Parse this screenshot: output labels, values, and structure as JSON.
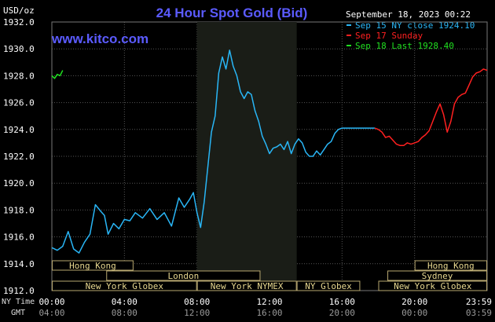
{
  "chart_data": {
    "type": "line",
    "title": "24 Hour Spot Gold (Bid)",
    "website": "www.kitco.com",
    "ylabel": "USD/oz",
    "datestamp": "September 18, 2023 00:22",
    "ylim": [
      1912,
      1932
    ],
    "y_ticks": [
      "1932.0",
      "1930.0",
      "1928.0",
      "1926.0",
      "1924.0",
      "1922.0",
      "1920.0",
      "1918.0",
      "1916.0",
      "1914.0",
      "1912.0"
    ],
    "x_row_label": "NY Time",
    "x_ticks": [
      "00:00",
      "04:00",
      "08:00",
      "12:00",
      "16:00",
      "20:00",
      "23:59"
    ],
    "gmt_row_label": "GMT",
    "gmt_ticks": [
      "04:00",
      "08:00",
      "12:00",
      "16:00",
      "20:00",
      "00:00",
      "03:59"
    ],
    "grid": true,
    "legend_position": "top-right",
    "legend": [
      {
        "text": "Sep 15 NY close 1924.10",
        "color": "#29b6f6"
      },
      {
        "text": "Sep 17 Sunday",
        "color": "#ff2020"
      },
      {
        "text": "Sep 18 Last 1928.40",
        "color": "#20e020"
      }
    ],
    "highlight_band": {
      "start_hour": 8.0,
      "end_hour": 13.5
    },
    "sessions": [
      {
        "label": "Hong Kong",
        "start_hour": 0.0,
        "end_hour": 4.5,
        "row": 0
      },
      {
        "label": "London",
        "start_hour": 3.0,
        "end_hour": 11.5,
        "row": 1
      },
      {
        "label": "New York Globex",
        "start_hour": 0.0,
        "end_hour": 8.0,
        "row": 2
      },
      {
        "label": "New York NYMEX",
        "start_hour": 8.0,
        "end_hour": 13.5,
        "row": 2
      },
      {
        "label": "NY Globex",
        "start_hour": 13.5,
        "end_hour": 17.0,
        "row": 2
      },
      {
        "label": "Hong Kong",
        "start_hour": 20.0,
        "end_hour": 24.0,
        "row": 0
      },
      {
        "label": "Sydney",
        "start_hour": 18.5,
        "end_hour": 24.0,
        "row": 1
      },
      {
        "label": "New York Globex",
        "start_hour": 18.0,
        "end_hour": 24.0,
        "row": 2
      }
    ],
    "series": [
      {
        "name": "Sep 15",
        "color": "#29b6f6",
        "x": [
          0.0,
          0.3,
          0.6,
          0.9,
          1.2,
          1.5,
          1.8,
          2.1,
          2.4,
          2.7,
          2.9,
          3.1,
          3.4,
          3.7,
          4.0,
          4.3,
          4.6,
          5.0,
          5.4,
          5.8,
          6.2,
          6.6,
          7.0,
          7.3,
          7.6,
          7.8,
          8.0,
          8.2,
          8.4,
          8.6,
          8.8,
          9.0,
          9.2,
          9.4,
          9.6,
          9.8,
          10.0,
          10.2,
          10.4,
          10.6,
          10.8,
          11.0,
          11.2,
          11.4,
          11.6,
          11.8,
          12.0,
          12.2,
          12.4,
          12.6,
          12.8,
          13.0,
          13.2,
          13.4,
          13.6,
          13.8,
          14.0,
          14.2,
          14.4,
          14.6,
          14.8,
          15.0,
          15.2,
          15.4,
          15.6,
          15.8,
          16.0,
          16.2,
          16.4,
          16.6,
          16.8,
          17.0,
          17.2,
          17.4,
          17.6,
          17.8
        ],
        "values": [
          1915.2,
          1915.0,
          1915.3,
          1916.4,
          1915.1,
          1914.8,
          1915.6,
          1916.2,
          1918.4,
          1917.9,
          1917.6,
          1916.2,
          1917.0,
          1916.6,
          1917.3,
          1917.2,
          1917.8,
          1917.4,
          1918.1,
          1917.3,
          1917.8,
          1916.8,
          1918.9,
          1918.2,
          1918.8,
          1919.3,
          1917.8,
          1916.7,
          1918.6,
          1921.2,
          1923.8,
          1925.0,
          1928.2,
          1929.4,
          1928.5,
          1929.9,
          1928.7,
          1928.0,
          1926.8,
          1926.3,
          1926.8,
          1926.6,
          1925.4,
          1924.6,
          1923.5,
          1922.9,
          1922.2,
          1922.6,
          1922.7,
          1922.9,
          1922.5,
          1923.1,
          1922.2,
          1922.9,
          1923.3,
          1923.0,
          1922.3,
          1922.0,
          1922.0,
          1922.4,
          1922.1,
          1922.5,
          1922.9,
          1923.1,
          1923.7,
          1924.0,
          1924.1,
          1924.1,
          1924.1,
          1924.1,
          1924.1,
          1924.1,
          1924.1,
          1924.1,
          1924.1,
          1924.1
        ]
      },
      {
        "name": "Sep 17",
        "color": "#ff2020",
        "x": [
          17.8,
          18.0,
          18.2,
          18.4,
          18.6,
          18.8,
          19.0,
          19.2,
          19.4,
          19.6,
          19.8,
          20.0,
          20.2,
          20.4,
          20.6,
          20.8,
          21.0,
          21.2,
          21.4,
          21.6,
          21.8,
          22.0,
          22.2,
          22.4,
          22.6,
          22.8,
          23.0,
          23.2,
          23.4,
          23.6,
          23.8,
          24.0
        ],
        "values": [
          1924.1,
          1924.0,
          1923.8,
          1923.4,
          1923.5,
          1923.2,
          1922.9,
          1922.8,
          1922.8,
          1923.0,
          1922.9,
          1923.0,
          1923.1,
          1923.4,
          1923.6,
          1923.9,
          1924.6,
          1925.3,
          1925.9,
          1925.1,
          1923.8,
          1924.6,
          1925.9,
          1926.4,
          1926.6,
          1926.7,
          1927.3,
          1927.9,
          1928.2,
          1928.3,
          1928.5,
          1928.4
        ]
      },
      {
        "name": "Sep 18",
        "color": "#20e020",
        "x": [
          0.0,
          0.15,
          0.3,
          0.45,
          0.6
        ],
        "values": [
          1928.0,
          1927.8,
          1928.1,
          1928.0,
          1928.4
        ]
      }
    ]
  }
}
